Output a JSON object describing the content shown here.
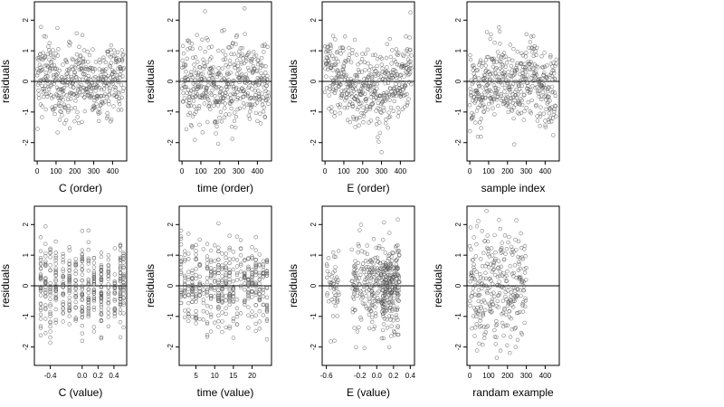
{
  "chart_data": [
    {
      "type": "scatter",
      "xlabel": "C (order)",
      "ylabel": "residuals",
      "xlim": [
        -15,
        475
      ],
      "xticks": [
        0,
        100,
        200,
        300,
        400
      ],
      "xtick_labels": [
        "0",
        "100",
        "200",
        "300",
        "400"
      ],
      "ylim": [
        -2.6,
        2.6
      ],
      "yticks": [
        -2,
        -1,
        0,
        1,
        2
      ],
      "reference_line": 0,
      "n_points": 460,
      "x_type": "order",
      "pattern": "wavy",
      "grid": false,
      "legend": "none"
    },
    {
      "type": "scatter",
      "xlabel": "time (order)",
      "ylabel": "residuals",
      "xlim": [
        -15,
        475
      ],
      "xticks": [
        0,
        100,
        200,
        300,
        400
      ],
      "xtick_labels": [
        "0",
        "100",
        "200",
        "300",
        "400"
      ],
      "ylim": [
        -2.6,
        2.6
      ],
      "yticks": [
        -2,
        -1,
        0,
        1,
        2
      ],
      "reference_line": 0,
      "n_points": 460,
      "x_type": "order",
      "pattern": "random",
      "grid": false,
      "legend": "none"
    },
    {
      "type": "scatter",
      "xlabel": "E (order)",
      "ylabel": "residuals",
      "xlim": [
        -15,
        475
      ],
      "xticks": [
        0,
        100,
        200,
        300,
        400
      ],
      "xtick_labels": [
        "0",
        "100",
        "200",
        "300",
        "400"
      ],
      "ylim": [
        -2.6,
        2.6
      ],
      "yticks": [
        -2,
        -1,
        0,
        1,
        2
      ],
      "reference_line": 0,
      "n_points": 460,
      "x_type": "order",
      "pattern": "u-shape",
      "grid": false,
      "legend": "none"
    },
    {
      "type": "scatter",
      "xlabel": "sample index",
      "ylabel": "residuals",
      "xlim": [
        -15,
        475
      ],
      "xticks": [
        0,
        100,
        200,
        300,
        400
      ],
      "xtick_labels": [
        "0",
        "100",
        "200",
        "300",
        "400"
      ],
      "ylim": [
        -2.6,
        2.6
      ],
      "yticks": [
        -2,
        -1,
        0,
        1,
        2
      ],
      "reference_line": 0,
      "n_points": 460,
      "x_type": "order",
      "pattern": "wavy",
      "grid": false,
      "legend": "none"
    },
    {
      "type": "scatter",
      "xlabel": "C (value)",
      "ylabel": "residuals",
      "xlim": [
        -0.6,
        0.56
      ],
      "xticks": [
        -0.4,
        0.0,
        0.2,
        0.4
      ],
      "xtick_labels": [
        "-0.4",
        "0.0",
        "0.2",
        "0.4"
      ],
      "ylim": [
        -2.6,
        2.6
      ],
      "yticks": [
        -2,
        -1,
        0,
        1,
        2
      ],
      "reference_line": 0,
      "n_points": 460,
      "x_type": "discrete",
      "x_levels": [
        -0.52,
        -0.46,
        -0.4,
        -0.33,
        -0.24,
        -0.16,
        -0.08,
        0.0,
        0.08,
        0.15,
        0.24,
        0.33,
        0.41,
        0.48,
        0.52
      ],
      "pattern": "columns",
      "grid": false,
      "legend": "none"
    },
    {
      "type": "scatter",
      "xlabel": "time (value)",
      "ylabel": "residuals",
      "xlim": [
        0.5,
        25.2
      ],
      "xticks": [
        5,
        10,
        15,
        20
      ],
      "xtick_labels": [
        "5",
        "10",
        "15",
        "20"
      ],
      "ylim": [
        -2.6,
        2.6
      ],
      "yticks": [
        -2,
        -1,
        0,
        1,
        2
      ],
      "reference_line": 0,
      "n_points": 460,
      "x_type": "discrete",
      "x_levels": [
        1,
        2,
        3,
        4,
        5,
        6,
        7,
        8,
        9,
        10,
        11,
        12,
        13,
        14,
        15,
        16,
        17,
        18,
        19,
        20,
        21,
        22,
        23,
        24
      ],
      "pattern": "columns",
      "grid": false,
      "legend": "none"
    },
    {
      "type": "scatter",
      "xlabel": "E (value)",
      "ylabel": "residuals",
      "xlim": [
        -0.65,
        0.45
      ],
      "xticks": [
        -0.6,
        -0.2,
        0.0,
        0.2,
        0.4
      ],
      "xtick_labels": [
        "-0.6",
        "-0.2",
        "0.0",
        "0.2",
        "0.4"
      ],
      "ylim": [
        -2.6,
        2.6
      ],
      "yticks": [
        -2,
        -1,
        0,
        1,
        2
      ],
      "reference_line": 0,
      "n_points": 460,
      "x_type": "clustered",
      "pattern": "dense-right",
      "grid": false,
      "legend": "none"
    },
    {
      "type": "scatter",
      "xlabel": "randam example",
      "ylabel": "residuals",
      "xlim": [
        -15,
        475
      ],
      "xticks": [
        0,
        100,
        200,
        300,
        400
      ],
      "xtick_labels": [
        "0",
        "100",
        "200",
        "300",
        "400"
      ],
      "ylim": [
        -2.6,
        2.6
      ],
      "yticks": [
        -2,
        -1,
        0,
        1,
        2
      ],
      "reference_line": 0,
      "n_points": 300,
      "x_type": "order",
      "pattern": "random",
      "grid": false,
      "legend": "none"
    }
  ],
  "colors": {
    "point": "#555555",
    "axis": "#000000",
    "reference_line": "#000000",
    "background": "#ffffff"
  }
}
